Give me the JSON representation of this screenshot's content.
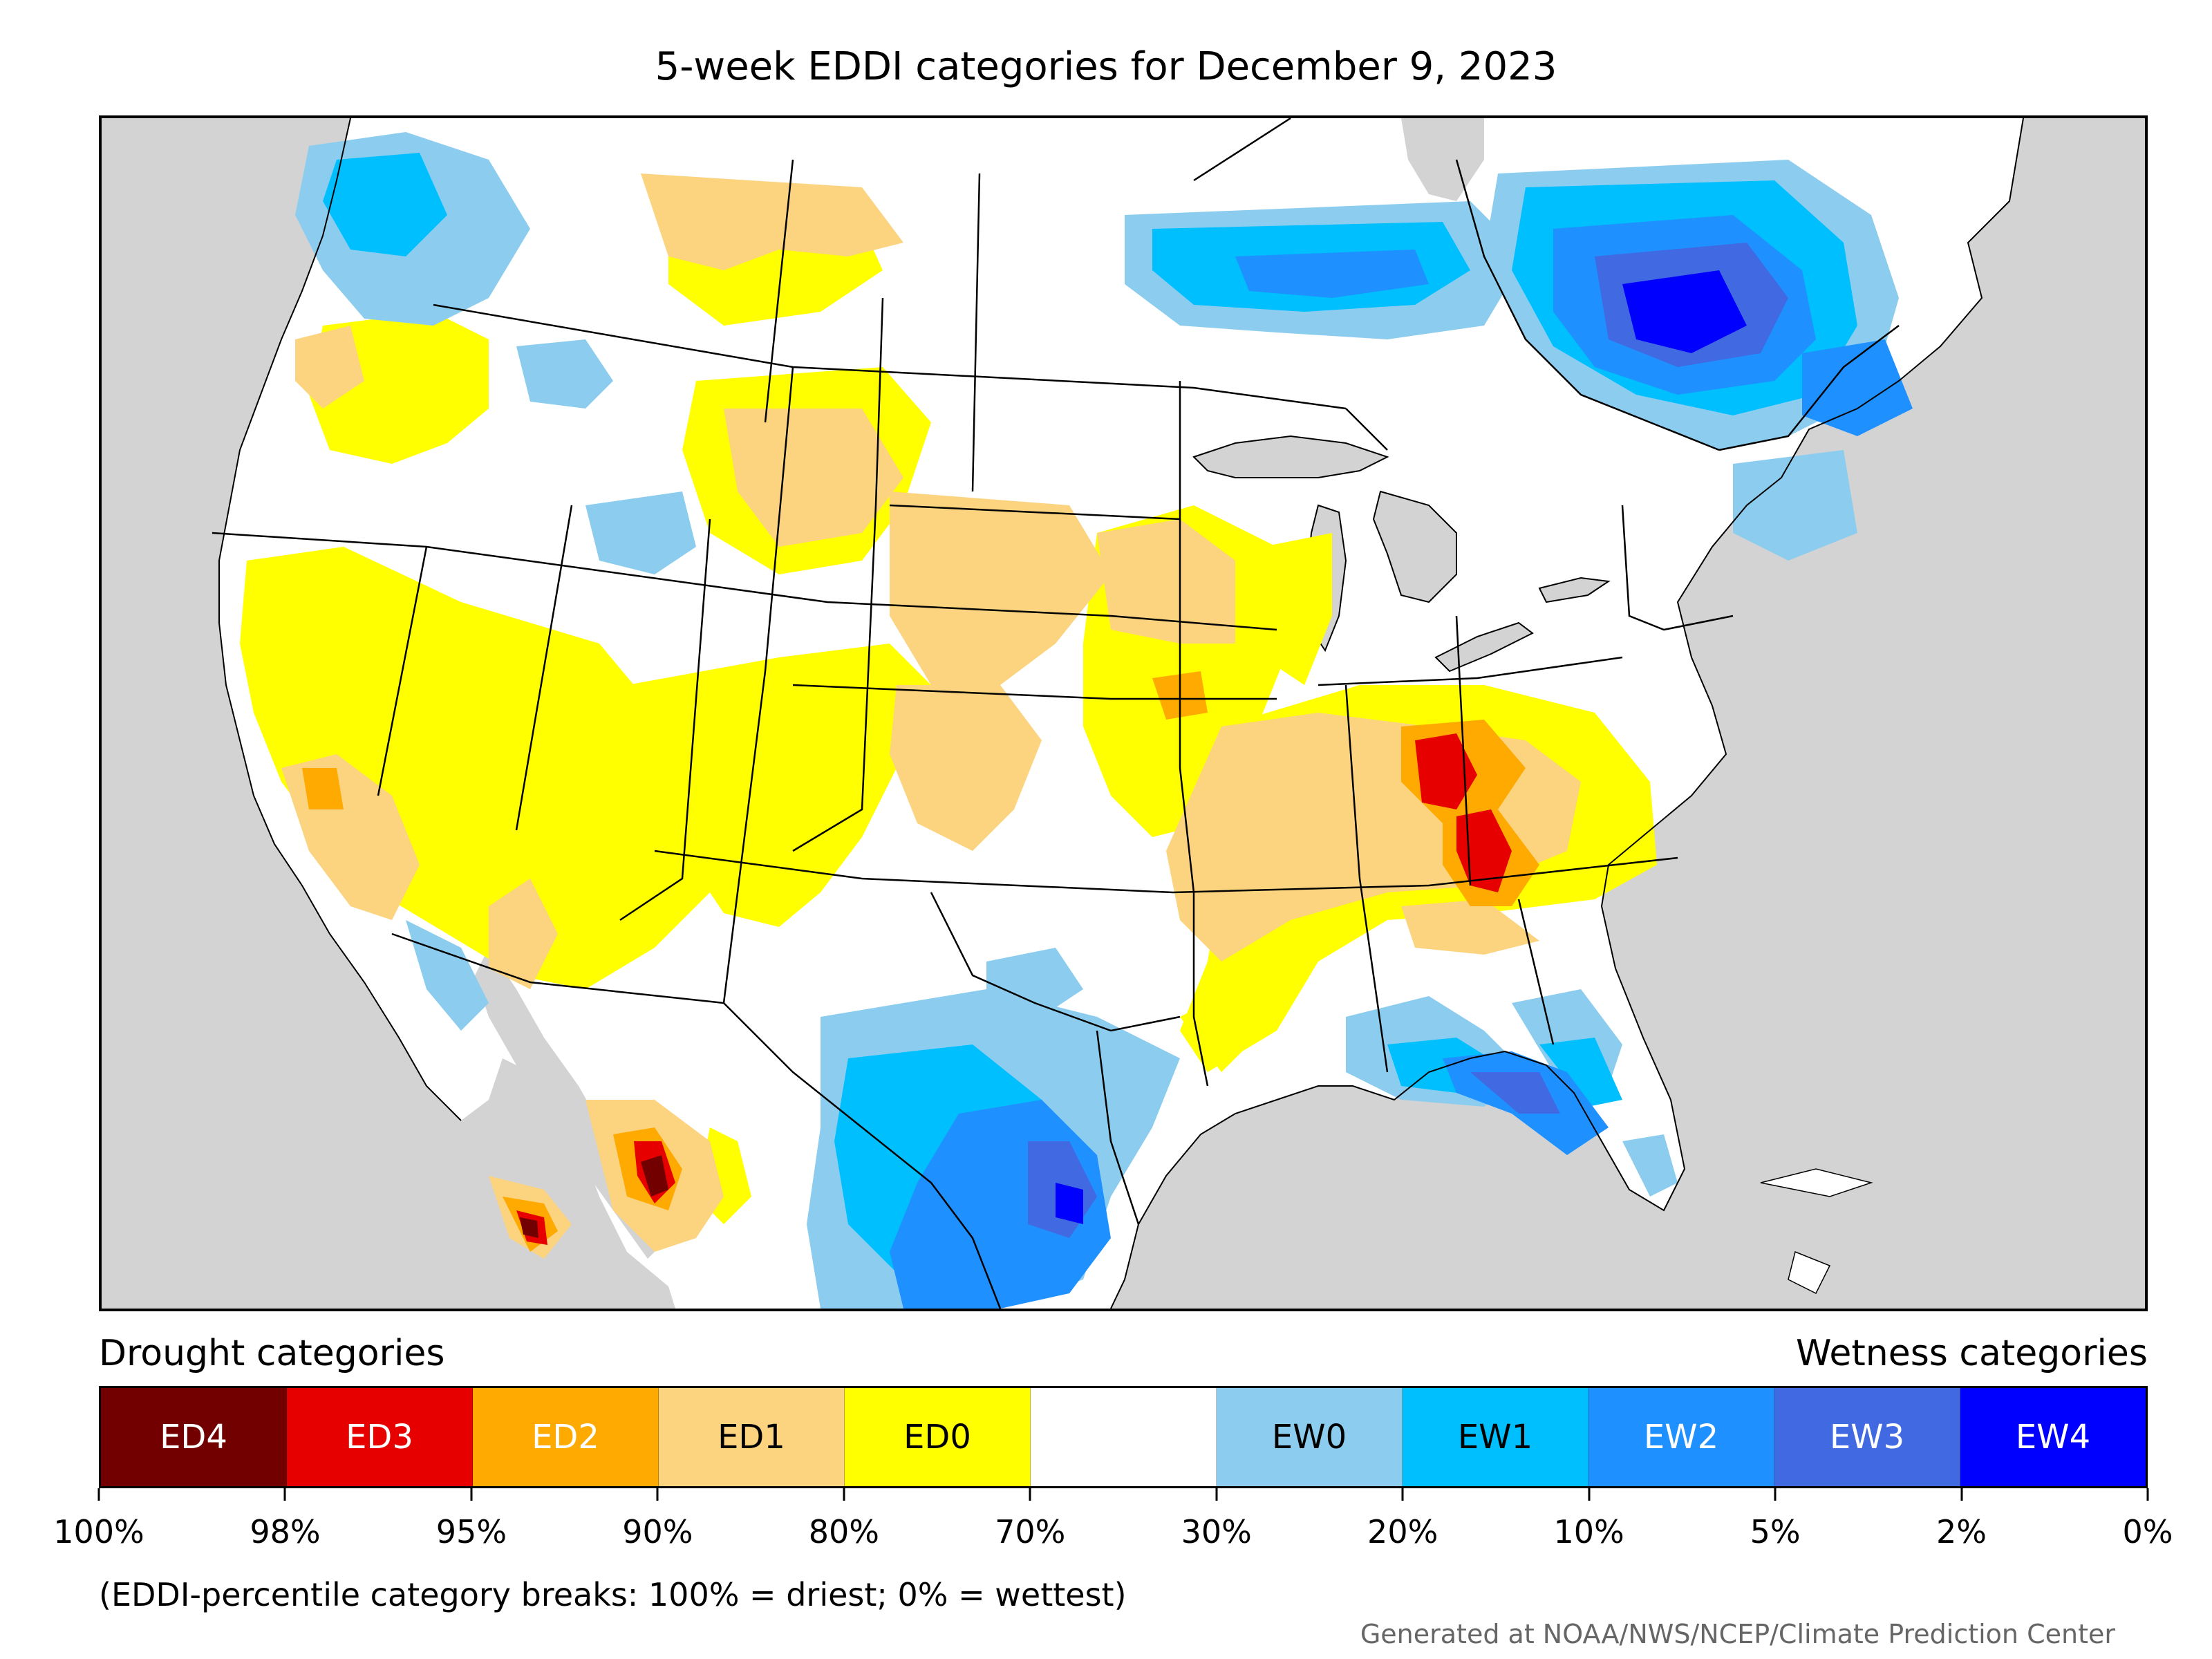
{
  "title": "5-week EDDI categories for December 9, 2023",
  "colors": {
    "ED4": "#730000",
    "ED3": "#e60000",
    "ED2": "#ffaa00",
    "ED1": "#fcd37f",
    "ED0": "#ffff00",
    "neutral": "#ffffff",
    "EW0": "#8ccdef",
    "EW1": "#00bfff",
    "EW2": "#1e90ff",
    "EW3": "#4169e1",
    "EW4": "#0000ff",
    "land_outside": "#d3d3d3",
    "water": "#d3d3d3"
  },
  "legend": {
    "drought_heading": "Drought categories",
    "wetness_heading": "Wetness categories",
    "categories": [
      {
        "label": "ED4",
        "key": "ED4",
        "text_color": "#ffffff"
      },
      {
        "label": "ED3",
        "key": "ED3",
        "text_color": "#ffffff"
      },
      {
        "label": "ED2",
        "key": "ED2",
        "text_color": "#ffffff"
      },
      {
        "label": "ED1",
        "key": "ED1",
        "text_color": "#000000"
      },
      {
        "label": "ED0",
        "key": "ED0",
        "text_color": "#000000"
      },
      {
        "label": "",
        "key": "neutral",
        "text_color": "#000000"
      },
      {
        "label": "EW0",
        "key": "EW0",
        "text_color": "#000000"
      },
      {
        "label": "EW1",
        "key": "EW1",
        "text_color": "#000000"
      },
      {
        "label": "EW2",
        "key": "EW2",
        "text_color": "#ffffff"
      },
      {
        "label": "EW3",
        "key": "EW3",
        "text_color": "#ffffff"
      },
      {
        "label": "EW4",
        "key": "EW4",
        "text_color": "#ffffff"
      }
    ],
    "tick_labels": [
      "100%",
      "98%",
      "95%",
      "90%",
      "80%",
      "70%",
      "30%",
      "20%",
      "10%",
      "5%",
      "2%",
      "0%"
    ],
    "note": "(EDDI-percentile category breaks: 100% = driest; 0% = wettest)"
  },
  "credit": "Generated at NOAA/NWS/NCEP/Climate Prediction Center"
}
